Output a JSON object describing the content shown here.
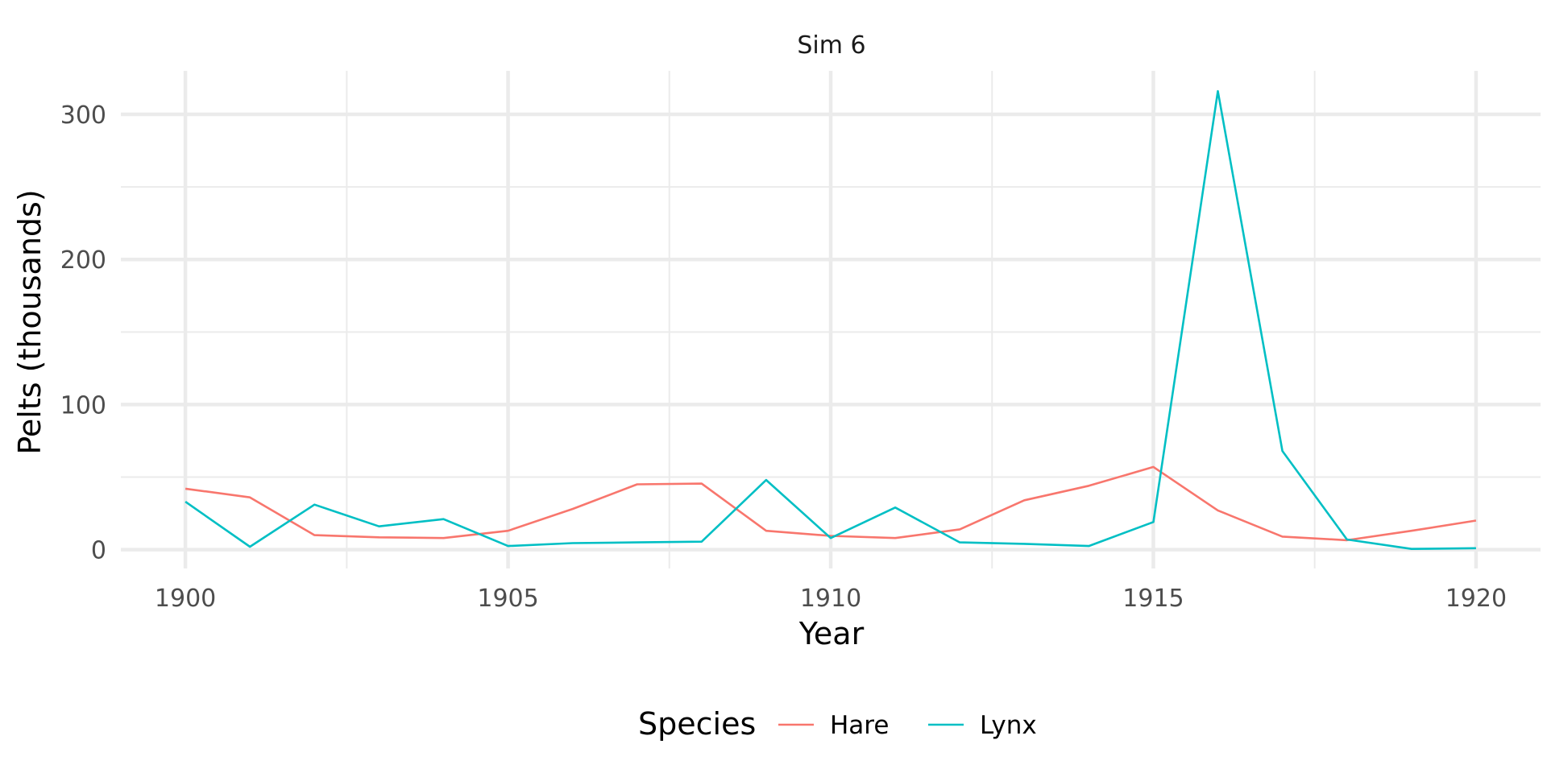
{
  "chart_data": {
    "type": "line",
    "title": "Sim 6",
    "xlabel": "Year",
    "ylabel": "Pelts (thousands)",
    "xlim": [
      1899,
      1921
    ],
    "ylim": [
      -13,
      330
    ],
    "x_ticks": [
      1900,
      1905,
      1910,
      1915,
      1920
    ],
    "y_ticks": [
      0,
      100,
      200,
      300
    ],
    "grid": true,
    "legend": {
      "title": "Species",
      "position": "bottom"
    },
    "x": [
      1900,
      1901,
      1902,
      1903,
      1904,
      1905,
      1906,
      1907,
      1908,
      1909,
      1910,
      1911,
      1912,
      1913,
      1914,
      1915,
      1916,
      1917,
      1918,
      1919,
      1920
    ],
    "series": [
      {
        "name": "Hare",
        "color": "#F8766D",
        "values": [
          42,
          36,
          10,
          8.5,
          8,
          13,
          28,
          45,
          45.5,
          13,
          9.5,
          8,
          14,
          34,
          44,
          57,
          27,
          9,
          6.5,
          13,
          20
        ]
      },
      {
        "name": "Lynx",
        "color": "#00BFC4",
        "values": [
          33,
          2,
          31,
          16,
          21,
          2.5,
          4.5,
          5,
          5.5,
          48,
          8,
          29,
          5,
          4,
          2.5,
          19,
          316,
          68,
          7,
          0.5,
          1
        ]
      }
    ]
  }
}
